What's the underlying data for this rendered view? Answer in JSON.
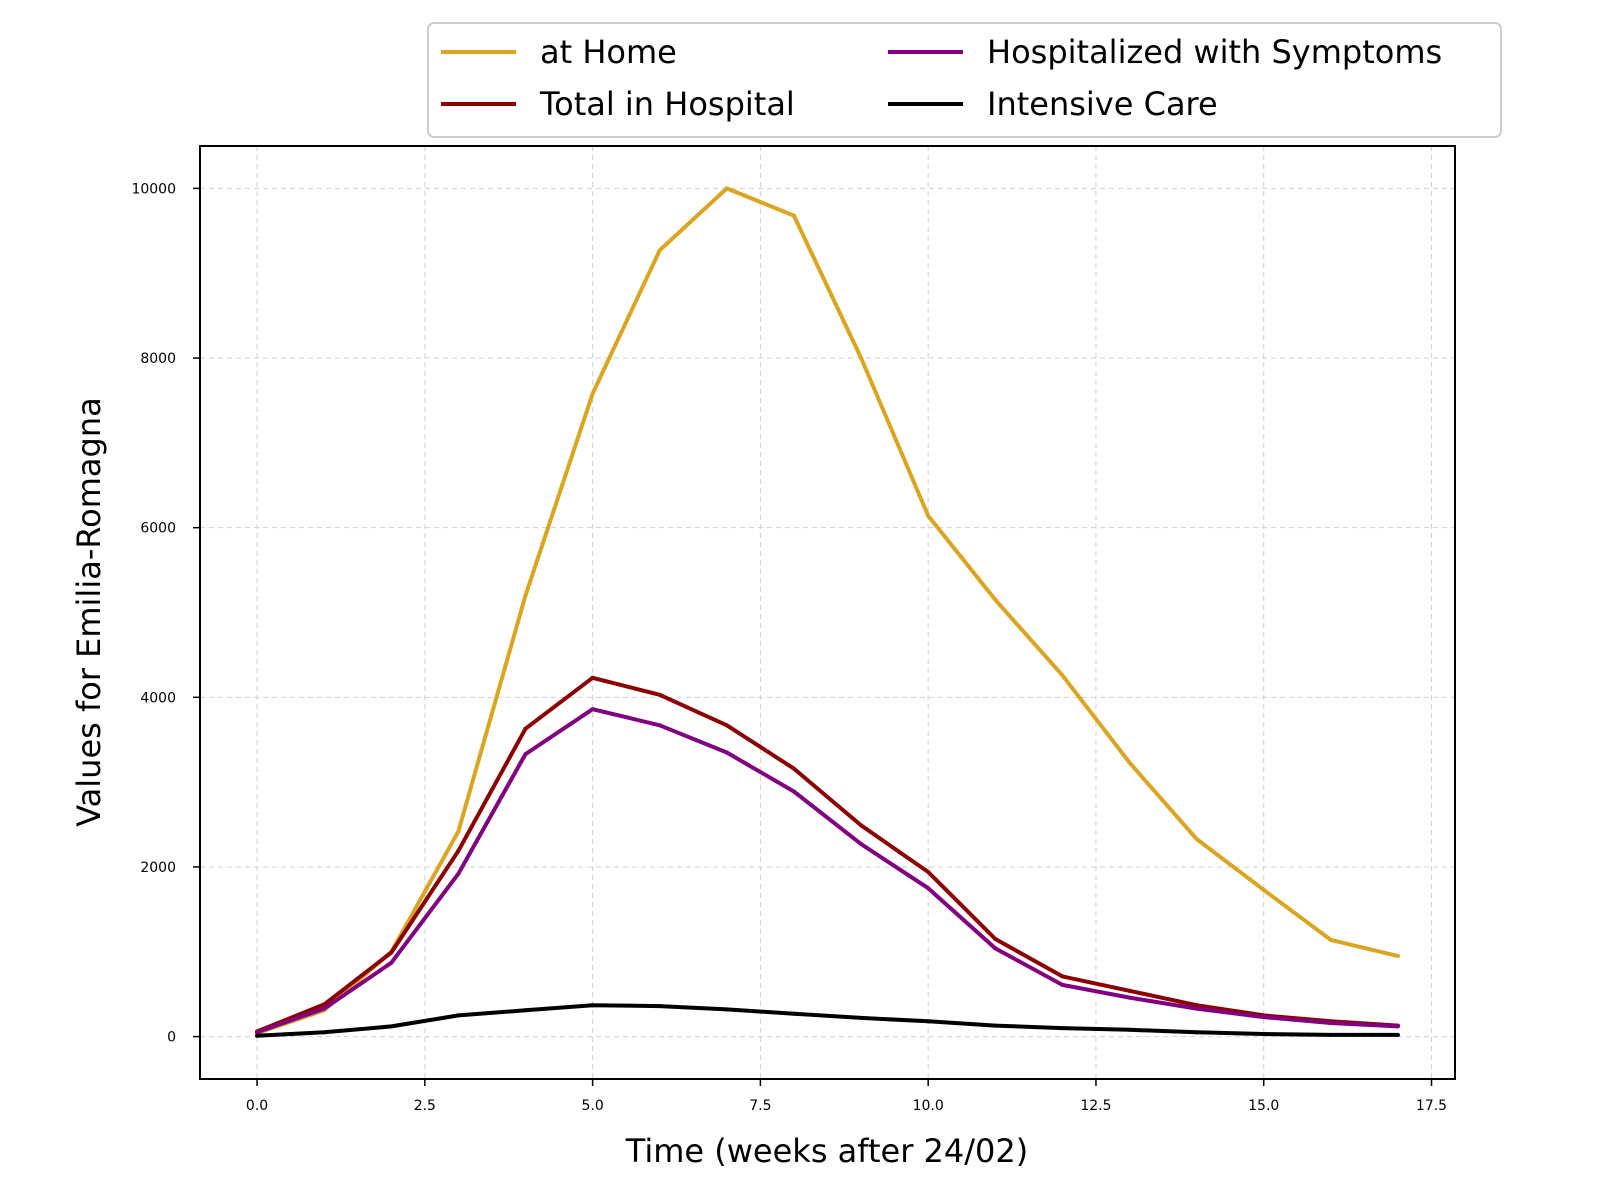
{
  "chart_data": {
    "type": "line",
    "title": "",
    "xlabel": "Time (weeks after 24/02)",
    "ylabel": "Values for Emilia-Romagna",
    "xlim": [
      -0.85,
      17.85
    ],
    "ylim": [
      -500,
      10500
    ],
    "xticks": [
      "0.0",
      "2.5",
      "5.0",
      "7.5",
      "10.0",
      "12.5",
      "15.0",
      "17.5"
    ],
    "yticks": [
      "0",
      "2000",
      "4000",
      "6000",
      "8000",
      "10000"
    ],
    "grid": true,
    "legend_position": "top, above plot",
    "x": [
      0,
      1,
      2,
      3,
      4,
      5,
      6,
      7,
      8,
      9,
      10,
      11,
      12,
      13,
      14,
      15,
      16,
      17
    ],
    "series": [
      {
        "name": "at Home",
        "color": "#DAA520",
        "values": [
          40,
          310,
          1000,
          2420,
          5200,
          7580,
          9270,
          10000,
          9680,
          8000,
          6140,
          5150,
          4260,
          3230,
          2330,
          1730,
          1140,
          950
        ]
      },
      {
        "name": "Total in Hospital",
        "color": "#8B0000",
        "values": [
          60,
          380,
          990,
          2190,
          3630,
          4230,
          4030,
          3670,
          3160,
          2490,
          1940,
          1150,
          710,
          540,
          370,
          250,
          180,
          130
        ]
      },
      {
        "name": "Hospitalized with Symptoms",
        "color": "#800080",
        "values": [
          50,
          330,
          870,
          1920,
          3330,
          3860,
          3670,
          3350,
          2890,
          2270,
          1750,
          1040,
          610,
          460,
          330,
          230,
          160,
          120
        ]
      },
      {
        "name": "Intensive Care",
        "color": "#000000",
        "values": [
          10,
          50,
          120,
          250,
          310,
          370,
          360,
          320,
          270,
          220,
          180,
          130,
          100,
          80,
          50,
          30,
          20,
          20
        ]
      }
    ]
  }
}
